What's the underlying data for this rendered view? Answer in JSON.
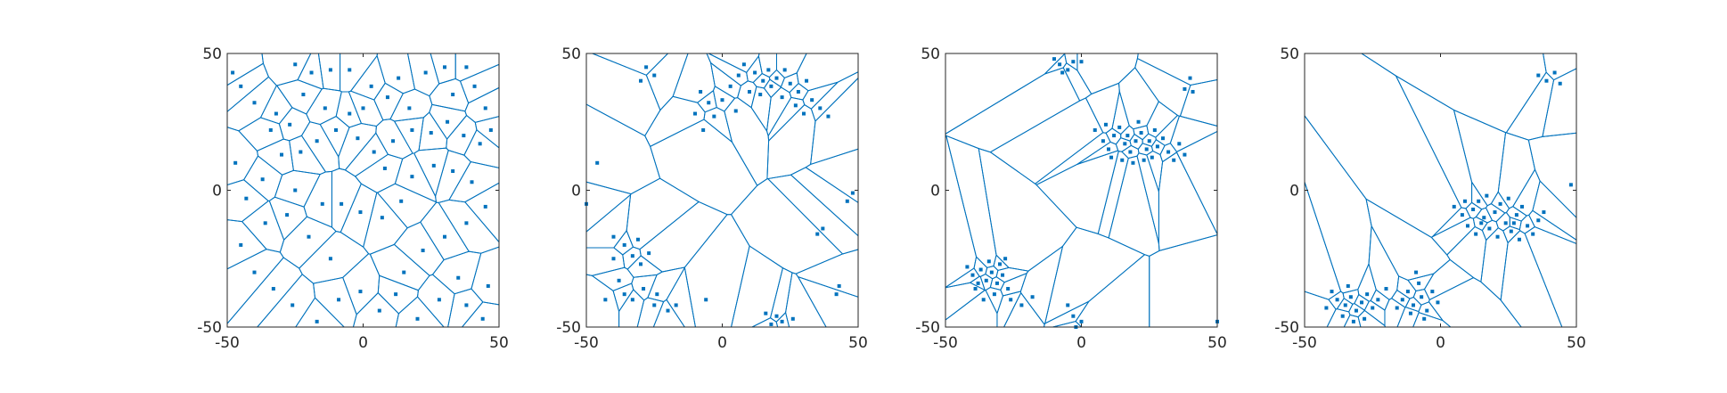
{
  "figure": {
    "line_color": "#0072BD",
    "point_color": "#0072BD",
    "axis_color": "#262626"
  },
  "chart_data": [
    {
      "type": "scatter",
      "overlay": "voronoi",
      "title": "",
      "xlabel": "",
      "ylabel": "",
      "xlim": [
        -50,
        50
      ],
      "ylim": [
        -50,
        50
      ],
      "xticks": [
        "-50",
        "0",
        "50"
      ],
      "yticks": [
        "-50",
        "0",
        "50"
      ],
      "grid": false,
      "points": [
        [
          -48,
          43
        ],
        [
          -45,
          38
        ],
        [
          -40,
          32
        ],
        [
          -34,
          22
        ],
        [
          -27,
          24
        ],
        [
          -22,
          35
        ],
        [
          -25,
          46
        ],
        [
          -19,
          43
        ],
        [
          -12,
          44
        ],
        [
          -5,
          44
        ],
        [
          3,
          38
        ],
        [
          9,
          34
        ],
        [
          13,
          41
        ],
        [
          23,
          43
        ],
        [
          30,
          45
        ],
        [
          38,
          45
        ],
        [
          41,
          38
        ],
        [
          45,
          30
        ],
        [
          47,
          22
        ],
        [
          43,
          17
        ],
        [
          37,
          20
        ],
        [
          31,
          25
        ],
        [
          25,
          21
        ],
        [
          18,
          22
        ],
        [
          11,
          18
        ],
        [
          4,
          14
        ],
        [
          -2,
          19
        ],
        [
          -10,
          22
        ],
        [
          -17,
          18
        ],
        [
          -23,
          14
        ],
        [
          -30,
          13
        ],
        [
          -37,
          4
        ],
        [
          -43,
          -3
        ],
        [
          -36,
          -12
        ],
        [
          -28,
          -9
        ],
        [
          -20,
          -17
        ],
        [
          -12,
          -25
        ],
        [
          -8,
          -5
        ],
        [
          -1,
          -8
        ],
        [
          7,
          -10
        ],
        [
          14,
          -4
        ],
        [
          18,
          5
        ],
        [
          26,
          9
        ],
        [
          33,
          7
        ],
        [
          40,
          3
        ],
        [
          45,
          -6
        ],
        [
          38,
          -12
        ],
        [
          30,
          -17
        ],
        [
          22,
          -22
        ],
        [
          15,
          -30
        ],
        [
          12,
          -38
        ],
        [
          6,
          -44
        ],
        [
          -1,
          -37
        ],
        [
          -9,
          -40
        ],
        [
          -17,
          -48
        ],
        [
          -26,
          -42
        ],
        [
          -33,
          -36
        ],
        [
          -40,
          -30
        ],
        [
          -45,
          -20
        ],
        [
          -47,
          10
        ],
        [
          35,
          -32
        ],
        [
          28,
          -40
        ],
        [
          38,
          -42
        ],
        [
          44,
          -47
        ],
        [
          46,
          -35
        ],
        [
          20,
          -47
        ],
        [
          -5,
          28
        ],
        [
          0,
          30
        ],
        [
          -14,
          30
        ],
        [
          17,
          30
        ],
        [
          33,
          35
        ],
        [
          -32,
          28
        ],
        [
          8,
          8
        ],
        [
          -15,
          -5
        ],
        [
          -25,
          0
        ]
      ]
    },
    {
      "type": "scatter",
      "overlay": "voronoi",
      "title": "",
      "xlabel": "",
      "ylabel": "",
      "xlim": [
        -50,
        50
      ],
      "ylim": [
        -50,
        50
      ],
      "xticks": [
        "-50",
        "0",
        "50"
      ],
      "yticks": [
        "-50",
        "0",
        "50"
      ],
      "grid": false,
      "points": [
        [
          -28,
          45
        ],
        [
          -25,
          42
        ],
        [
          -30,
          40
        ],
        [
          -8,
          36
        ],
        [
          -5,
          32
        ],
        [
          -3,
          27
        ],
        [
          -10,
          28
        ],
        [
          -7,
          22
        ],
        [
          0,
          33
        ],
        [
          3,
          38
        ],
        [
          6,
          42
        ],
        [
          8,
          46
        ],
        [
          12,
          43
        ],
        [
          15,
          40
        ],
        [
          18,
          38
        ],
        [
          20,
          41
        ],
        [
          23,
          44
        ],
        [
          25,
          39
        ],
        [
          28,
          36
        ],
        [
          31,
          40
        ],
        [
          33,
          33
        ],
        [
          36,
          30
        ],
        [
          39,
          27
        ],
        [
          22,
          34
        ],
        [
          14,
          35
        ],
        [
          10,
          36
        ],
        [
          5,
          29
        ],
        [
          27,
          31
        ],
        [
          30,
          28
        ],
        [
          17,
          44
        ],
        [
          -46,
          10
        ],
        [
          -50,
          -5
        ],
        [
          -40,
          -17
        ],
        [
          -36,
          -20
        ],
        [
          -33,
          -24
        ],
        [
          -30,
          -27
        ],
        [
          -27,
          -23
        ],
        [
          -31,
          -18
        ],
        [
          -38,
          -33
        ],
        [
          -36,
          -38
        ],
        [
          -33,
          -40
        ],
        [
          -29,
          -36
        ],
        [
          -43,
          -40
        ],
        [
          -25,
          -42
        ],
        [
          -20,
          -44
        ],
        [
          -17,
          -42
        ],
        [
          -6,
          -40
        ],
        [
          16,
          -45
        ],
        [
          18,
          -49
        ],
        [
          22,
          -48
        ],
        [
          26,
          -47
        ],
        [
          35,
          -16
        ],
        [
          37,
          -14
        ],
        [
          43,
          -35
        ],
        [
          42,
          -38
        ],
        [
          48,
          -1
        ],
        [
          46,
          -4
        ],
        [
          20,
          -46
        ],
        [
          -24,
          -38
        ],
        [
          -40,
          -25
        ]
      ]
    },
    {
      "type": "scatter",
      "overlay": "voronoi",
      "title": "",
      "xlabel": "",
      "ylabel": "",
      "xlim": [
        -50,
        50
      ],
      "ylim": [
        -50,
        50
      ],
      "xticks": [
        "-50",
        "0",
        "50"
      ],
      "yticks": [
        "-50",
        "0",
        "50"
      ],
      "grid": false,
      "points": [
        [
          -10,
          48
        ],
        [
          -8,
          46
        ],
        [
          -5,
          44
        ],
        [
          -3,
          47
        ],
        [
          0,
          47
        ],
        [
          -7,
          43
        ],
        [
          38,
          37
        ],
        [
          40,
          41
        ],
        [
          41,
          36
        ],
        [
          5,
          22
        ],
        [
          8,
          18
        ],
        [
          10,
          15
        ],
        [
          12,
          20
        ],
        [
          14,
          23
        ],
        [
          16,
          17
        ],
        [
          18,
          14
        ],
        [
          20,
          18
        ],
        [
          22,
          21
        ],
        [
          24,
          15
        ],
        [
          26,
          12
        ],
        [
          28,
          16
        ],
        [
          30,
          19
        ],
        [
          32,
          14
        ],
        [
          34,
          11
        ],
        [
          36,
          17
        ],
        [
          38,
          13
        ],
        [
          11,
          12
        ],
        [
          15,
          11
        ],
        [
          19,
          10
        ],
        [
          23,
          11
        ],
        [
          27,
          22
        ],
        [
          21,
          25
        ],
        [
          17,
          20
        ],
        [
          9,
          24
        ],
        [
          25,
          18
        ],
        [
          -42,
          -28
        ],
        [
          -40,
          -31
        ],
        [
          -37,
          -29
        ],
        [
          -35,
          -33
        ],
        [
          -33,
          -30
        ],
        [
          -31,
          -34
        ],
        [
          -29,
          -31
        ],
        [
          -27,
          -36
        ],
        [
          -32,
          -38
        ],
        [
          -36,
          -40
        ],
        [
          -39,
          -36
        ],
        [
          -30,
          -27
        ],
        [
          -26,
          -40
        ],
        [
          -22,
          -42
        ],
        [
          -18,
          -39
        ],
        [
          -28,
          -25
        ],
        [
          -5,
          -42
        ],
        [
          -3,
          -46
        ],
        [
          0,
          -48
        ],
        [
          -2,
          -50
        ],
        [
          50,
          -48
        ],
        [
          -34,
          -26
        ],
        [
          -38,
          -34
        ]
      ]
    },
    {
      "type": "scatter",
      "overlay": "voronoi",
      "title": "",
      "xlabel": "",
      "ylabel": "",
      "xlim": [
        -50,
        50
      ],
      "ylim": [
        -50,
        50
      ],
      "xticks": [
        "-50",
        "0",
        "50"
      ],
      "yticks": [
        "-50",
        "0",
        "50"
      ],
      "grid": false,
      "points": [
        [
          36,
          42
        ],
        [
          39,
          40
        ],
        [
          42,
          43
        ],
        [
          44,
          39
        ],
        [
          48,
          2
        ],
        [
          5,
          -6
        ],
        [
          8,
          -9
        ],
        [
          10,
          -13
        ],
        [
          12,
          -7
        ],
        [
          14,
          -4
        ],
        [
          16,
          -10
        ],
        [
          18,
          -14
        ],
        [
          20,
          -8
        ],
        [
          22,
          -5
        ],
        [
          24,
          -12
        ],
        [
          26,
          -15
        ],
        [
          28,
          -9
        ],
        [
          30,
          -6
        ],
        [
          32,
          -13
        ],
        [
          34,
          -16
        ],
        [
          36,
          -11
        ],
        [
          38,
          -8
        ],
        [
          13,
          -16
        ],
        [
          17,
          -2
        ],
        [
          21,
          -17
        ],
        [
          25,
          -3
        ],
        [
          29,
          -18
        ],
        [
          9,
          -4
        ],
        [
          15,
          -12
        ],
        [
          27,
          -12
        ],
        [
          -40,
          -37
        ],
        [
          -38,
          -40
        ],
        [
          -35,
          -42
        ],
        [
          -33,
          -39
        ],
        [
          -31,
          -44
        ],
        [
          -29,
          -41
        ],
        [
          -27,
          -38
        ],
        [
          -25,
          -43
        ],
        [
          -36,
          -46
        ],
        [
          -32,
          -48
        ],
        [
          -42,
          -43
        ],
        [
          -23,
          -40
        ],
        [
          -14,
          -40
        ],
        [
          -12,
          -37
        ],
        [
          -10,
          -42
        ],
        [
          -7,
          -39
        ],
        [
          -5,
          -44
        ],
        [
          -3,
          -37
        ],
        [
          -8,
          -34
        ],
        [
          -11,
          -45
        ],
        [
          -6,
          -47
        ],
        [
          -1,
          -41
        ],
        [
          -16,
          -43
        ],
        [
          -20,
          -36
        ],
        [
          -28,
          -47
        ],
        [
          -34,
          -35
        ],
        [
          -9,
          -30
        ]
      ]
    }
  ]
}
